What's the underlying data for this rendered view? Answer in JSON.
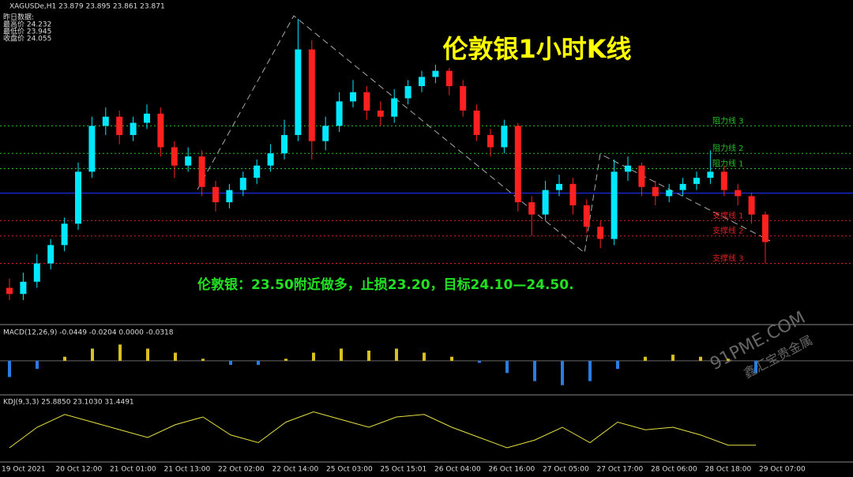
{
  "chart_data": {
    "type": "candlestick",
    "symbol_info": "XAGUSDe,H1  23.879 23.895 23.861 23.871",
    "prev_day": {
      "title": "昨日数据:",
      "lines": [
        "最高价 24.232",
        "最低价 23.945",
        "收盘价 24.055"
      ]
    },
    "title": "伦敦银1小时K线",
    "annotation": "伦敦银：23.50附近做多，止损23.20，目标24.10—24.50.",
    "ylim": [
      23.68,
      24.61
    ],
    "levels": [
      {
        "label": "阻力线 3",
        "value": 24.25,
        "color": "#22c022"
      },
      {
        "label": "阻力线 2",
        "value": 24.16,
        "color": "#22c022"
      },
      {
        "label": "阻力线 1",
        "value": 24.11,
        "color": "#22c022"
      },
      {
        "label": "支撑线 1",
        "value": 23.94,
        "color": "#e02020"
      },
      {
        "label": "支撑线 2",
        "value": 23.89,
        "color": "#e02020"
      },
      {
        "label": "支撑线 3",
        "value": 23.8,
        "color": "#e02020"
      }
    ],
    "blue_line": {
      "value": 24.03,
      "color": "#2030ff"
    },
    "candles": {
      "up_color": "#00e8ff",
      "down_color": "#ff2020",
      "ohlc": [
        [
          23.72,
          23.75,
          23.68,
          23.7
        ],
        [
          23.7,
          23.77,
          23.68,
          23.74
        ],
        [
          23.74,
          23.83,
          23.72,
          23.8
        ],
        [
          23.8,
          23.88,
          23.78,
          23.86
        ],
        [
          23.86,
          23.95,
          23.84,
          23.93
        ],
        [
          23.93,
          24.13,
          23.91,
          24.1
        ],
        [
          24.1,
          24.28,
          24.08,
          24.25
        ],
        [
          24.25,
          24.31,
          24.22,
          24.28
        ],
        [
          24.28,
          24.3,
          24.19,
          24.22
        ],
        [
          24.22,
          24.28,
          24.2,
          24.26
        ],
        [
          24.26,
          24.32,
          24.24,
          24.29
        ],
        [
          24.29,
          24.31,
          24.15,
          24.18
        ],
        [
          24.18,
          24.2,
          24.08,
          24.12
        ],
        [
          24.12,
          24.18,
          24.1,
          24.15
        ],
        [
          24.15,
          24.17,
          24.02,
          24.05
        ],
        [
          24.05,
          24.07,
          23.97,
          24.0
        ],
        [
          24.0,
          24.06,
          23.98,
          24.04
        ],
        [
          24.04,
          24.1,
          24.02,
          24.08
        ],
        [
          24.08,
          24.14,
          24.06,
          24.12
        ],
        [
          24.12,
          24.19,
          24.1,
          24.16
        ],
        [
          24.16,
          24.27,
          24.14,
          24.22
        ],
        [
          24.22,
          24.6,
          24.2,
          24.5
        ],
        [
          24.5,
          24.53,
          24.14,
          24.2
        ],
        [
          24.2,
          24.28,
          24.17,
          24.25
        ],
        [
          24.25,
          24.36,
          24.23,
          24.33
        ],
        [
          24.33,
          24.4,
          24.31,
          24.36
        ],
        [
          24.36,
          24.38,
          24.27,
          24.3
        ],
        [
          24.3,
          24.33,
          24.25,
          24.28
        ],
        [
          24.28,
          24.37,
          24.26,
          24.34
        ],
        [
          24.34,
          24.4,
          24.32,
          24.38
        ],
        [
          24.38,
          24.43,
          24.36,
          24.41
        ],
        [
          24.41,
          24.45,
          24.39,
          24.43
        ],
        [
          24.43,
          24.44,
          24.35,
          24.38
        ],
        [
          24.38,
          24.4,
          24.28,
          24.3
        ],
        [
          24.3,
          24.32,
          24.2,
          24.22
        ],
        [
          24.22,
          24.24,
          24.15,
          24.18
        ],
        [
          24.18,
          24.27,
          24.16,
          24.25
        ],
        [
          24.25,
          24.26,
          23.97,
          24.0
        ],
        [
          24.0,
          24.02,
          23.89,
          23.96
        ],
        [
          23.96,
          24.07,
          23.94,
          24.04
        ],
        [
          24.04,
          24.09,
          24.02,
          24.06
        ],
        [
          24.06,
          24.08,
          23.96,
          23.99
        ],
        [
          23.99,
          24.01,
          23.9,
          23.92
        ],
        [
          23.92,
          23.94,
          23.85,
          23.88
        ],
        [
          23.88,
          24.14,
          23.86,
          24.1
        ],
        [
          24.1,
          24.15,
          24.07,
          24.12
        ],
        [
          24.12,
          24.13,
          24.02,
          24.05
        ],
        [
          24.05,
          24.07,
          23.99,
          24.02
        ],
        [
          24.02,
          24.06,
          24.0,
          24.04
        ],
        [
          24.04,
          24.08,
          24.02,
          24.06
        ],
        [
          24.06,
          24.1,
          24.04,
          24.08
        ],
        [
          24.08,
          24.17,
          24.06,
          24.1
        ],
        [
          24.1,
          24.12,
          24.02,
          24.04
        ],
        [
          24.04,
          24.06,
          23.99,
          24.02
        ],
        [
          24.02,
          24.03,
          23.93,
          23.96
        ],
        [
          23.96,
          23.97,
          23.8,
          23.87
        ]
      ]
    },
    "x_labels": [
      "19 Oct 2021",
      "20 Oct 12:00",
      "21 Oct 01:00",
      "21 Oct 13:00",
      "22 Oct 02:00",
      "22 Oct 14:00",
      "25 Oct 03:00",
      "25 Oct 15:01",
      "26 Oct 04:00",
      "26 Oct 16:00",
      "27 Oct 05:00",
      "27 Oct 17:00",
      "28 Oct 06:00",
      "28 Oct 18:00",
      "29 Oct 07:00"
    ],
    "macd": {
      "label": "MACD(12,26,9) -0.0449 -0.0204 0.0000 -0.0318",
      "ylim": [
        -0.08,
        0.06
      ],
      "pos_color": "#d8c020",
      "neg_color": "#2a7de0",
      "values": [
        -0.04,
        -0.02,
        0.01,
        0.03,
        0.04,
        0.03,
        0.02,
        0.005,
        -0.01,
        -0.01,
        0.005,
        0.02,
        0.03,
        0.025,
        0.03,
        0.02,
        0.01,
        -0.005,
        -0.03,
        -0.05,
        -0.06,
        -0.05,
        -0.02,
        0.01,
        0.015,
        0.01,
        0.005,
        -0.03
      ]
    },
    "kdj": {
      "label": "KDJ(9,3,3) 25.8850 23.1030 31.4491",
      "ylim": [
        0,
        100
      ],
      "color": "#e8e040",
      "values": [
        20,
        60,
        85,
        70,
        55,
        40,
        65,
        80,
        45,
        30,
        70,
        90,
        75,
        60,
        80,
        85,
        60,
        40,
        20,
        35,
        60,
        30,
        70,
        55,
        60,
        45,
        25,
        25
      ]
    },
    "watermark": [
      "91PME.COM",
      "鑫汇宝贵金属"
    ]
  }
}
